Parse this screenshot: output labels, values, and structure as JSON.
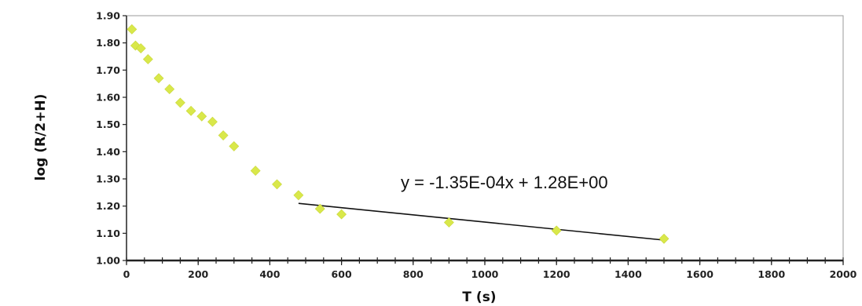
{
  "chart_data": {
    "type": "scatter",
    "xlabel": "T (s)",
    "ylabel": "log (R/2+H)",
    "xlim": [
      0,
      2000
    ],
    "ylim": [
      1.0,
      1.9
    ],
    "x_ticks": [
      "0",
      "200",
      "400",
      "600",
      "800",
      "1000",
      "1200",
      "1400",
      "1600",
      "1800",
      "2000"
    ],
    "y_ticks": [
      "1.00",
      "1.10",
      "1.20",
      "1.30",
      "1.40",
      "1.50",
      "1.60",
      "1.70",
      "1.80",
      "1.90"
    ],
    "grid": false,
    "marker_color": "#d9e84a",
    "series": [
      {
        "points": [
          {
            "x": 15,
            "y": 1.85
          },
          {
            "x": 25,
            "y": 1.79
          },
          {
            "x": 40,
            "y": 1.78
          },
          {
            "x": 60,
            "y": 1.74
          },
          {
            "x": 90,
            "y": 1.67
          },
          {
            "x": 120,
            "y": 1.63
          },
          {
            "x": 150,
            "y": 1.58
          },
          {
            "x": 180,
            "y": 1.55
          },
          {
            "x": 210,
            "y": 1.53
          },
          {
            "x": 240,
            "y": 1.51
          },
          {
            "x": 270,
            "y": 1.46
          },
          {
            "x": 300,
            "y": 1.42
          },
          {
            "x": 360,
            "y": 1.33
          },
          {
            "x": 420,
            "y": 1.28
          },
          {
            "x": 480,
            "y": 1.24
          },
          {
            "x": 540,
            "y": 1.19
          },
          {
            "x": 600,
            "y": 1.17
          },
          {
            "x": 900,
            "y": 1.14
          },
          {
            "x": 1200,
            "y": 1.11
          },
          {
            "x": 1500,
            "y": 1.08
          }
        ]
      }
    ],
    "trendline": {
      "x_range": [
        480,
        1500
      ],
      "y_range": [
        1.21,
        1.075
      ],
      "equation": "y = -1.35E-04x + 1.28E+00",
      "color": "#111111"
    }
  }
}
